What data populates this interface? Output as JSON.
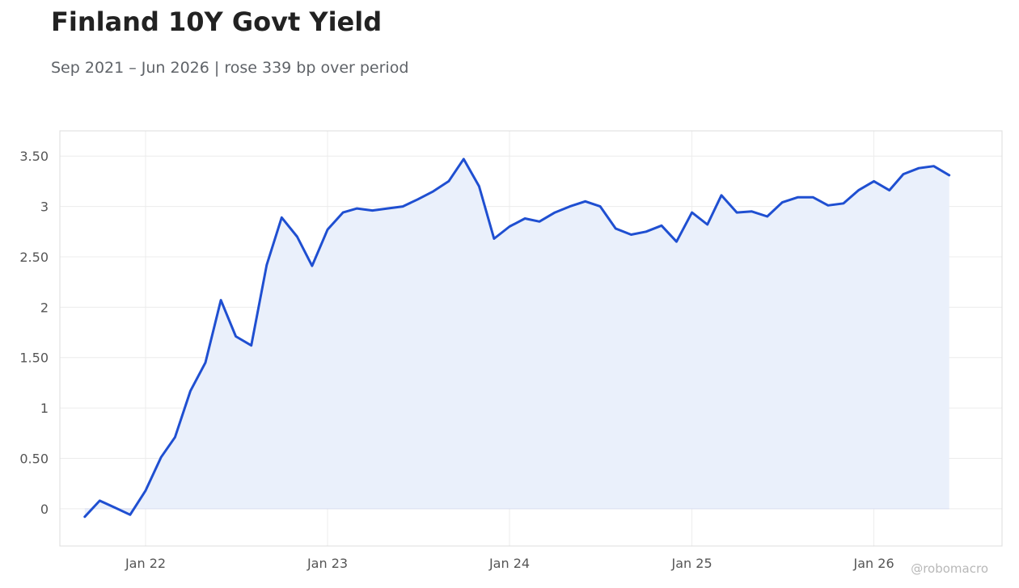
{
  "title": "Finland 10Y Govt Yield",
  "subtitle": "Sep 2021 – Jun 2026 | rose 339 bp over period",
  "watermark": "@robomacro",
  "colors": {
    "line": "#1f4fd1",
    "area": "#eaf0fb",
    "grid": "#ececec",
    "frame": "#dddddd"
  },
  "chart_data": {
    "type": "area",
    "title": "Finland 10Y Govt Yield",
    "subtitle": "Sep 2021 – Jun 2026 | rose 339 bp over period",
    "xlabel": "",
    "ylabel": "",
    "ylim": [
      -0.37,
      3.75
    ],
    "xlim": [
      "2021-07-13",
      "2026-09-15"
    ],
    "grid": true,
    "legend": "none",
    "y_ticks": [
      {
        "value": 0,
        "label": "0"
      },
      {
        "value": 0.5,
        "label": "0.50"
      },
      {
        "value": 1,
        "label": "1"
      },
      {
        "value": 1.5,
        "label": "1.50"
      },
      {
        "value": 2,
        "label": "2"
      },
      {
        "value": 2.5,
        "label": "2.50"
      },
      {
        "value": 3,
        "label": "3"
      },
      {
        "value": 3.5,
        "label": "3.50"
      }
    ],
    "x_ticks": [
      {
        "date": "2022-01-01",
        "label": "Jan 22"
      },
      {
        "date": "2023-01-01",
        "label": "Jan 23"
      },
      {
        "date": "2024-01-01",
        "label": "Jan 24"
      },
      {
        "date": "2025-01-01",
        "label": "Jan 25"
      },
      {
        "date": "2026-01-01",
        "label": "Jan 26"
      }
    ],
    "series": [
      {
        "x": [
          "2021-09-01",
          "2021-10-01",
          "2021-11-01",
          "2021-12-01",
          "2022-01-01",
          "2022-02-01",
          "2022-03-01",
          "2022-04-01",
          "2022-05-01",
          "2022-06-01",
          "2022-07-01",
          "2022-08-01",
          "2022-09-01",
          "2022-10-01",
          "2022-11-01",
          "2022-12-01",
          "2023-01-01",
          "2023-02-01",
          "2023-03-01",
          "2023-04-01",
          "2023-05-01",
          "2023-06-01",
          "2023-07-01",
          "2023-08-01",
          "2023-09-01",
          "2023-10-01",
          "2023-11-01",
          "2023-12-01",
          "2024-01-01",
          "2024-02-01",
          "2024-03-01",
          "2024-04-01",
          "2024-05-01",
          "2024-06-01",
          "2024-07-01",
          "2024-08-01",
          "2024-09-01",
          "2024-10-01",
          "2024-11-01",
          "2024-12-01",
          "2025-01-01",
          "2025-02-01",
          "2025-03-01",
          "2025-04-01",
          "2025-05-01",
          "2025-06-01",
          "2025-07-01",
          "2025-08-01",
          "2025-09-01",
          "2025-10-01",
          "2025-11-01",
          "2025-12-01",
          "2026-01-01",
          "2026-02-01",
          "2026-03-01",
          "2026-04-01",
          "2026-05-01",
          "2026-06-01"
        ],
        "values": [
          -0.08,
          0.08,
          0.01,
          -0.06,
          0.18,
          0.51,
          0.71,
          1.17,
          1.45,
          2.07,
          1.71,
          1.62,
          2.42,
          2.89,
          2.7,
          2.41,
          2.77,
          2.94,
          2.98,
          2.96,
          2.98,
          3.0,
          3.07,
          3.15,
          3.25,
          3.47,
          3.2,
          2.68,
          2.8,
          2.88,
          2.85,
          2.94,
          3.0,
          3.05,
          3.0,
          2.78,
          2.72,
          2.75,
          2.81,
          2.65,
          2.94,
          2.82,
          3.11,
          2.94,
          2.95,
          2.9,
          3.04,
          3.09,
          3.09,
          3.01,
          3.03,
          3.16,
          3.25,
          3.16,
          3.32,
          3.38,
          3.4,
          3.31
        ]
      }
    ]
  }
}
